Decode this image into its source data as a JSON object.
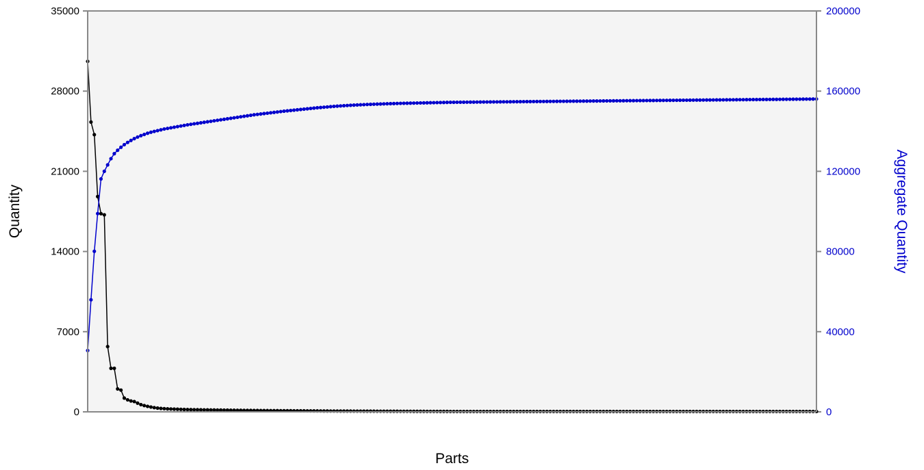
{
  "chart_data": {
    "type": "line",
    "xlabel": "Parts",
    "ylabel": "Quantity",
    "y2label": "Aggregate Quantity",
    "ylim": [
      0,
      35000
    ],
    "y2lim": [
      0,
      200000
    ],
    "yticks": [
      "0",
      "7000",
      "14000",
      "21000",
      "28000",
      "35000"
    ],
    "y2ticks": [
      "0",
      "40000",
      "80000",
      "120000",
      "160000",
      "200000"
    ],
    "grid": false,
    "legend": "none",
    "colors": {
      "quantity": "#000000",
      "aggregate": "#0000cc",
      "plot_bg": "#f4f4f4",
      "frame": "#888888"
    },
    "x": [
      1,
      2,
      3,
      4,
      5,
      6,
      7,
      8,
      9,
      10,
      11,
      12,
      13,
      14,
      15,
      16,
      17,
      18,
      19,
      20,
      21,
      22,
      23,
      24,
      25,
      26,
      27,
      28,
      29,
      30,
      31,
      32,
      33,
      34,
      35,
      36,
      37,
      38,
      39,
      40,
      41,
      42,
      43,
      44,
      45,
      46,
      47,
      48,
      49,
      50,
      51,
      52,
      53,
      54,
      55,
      56,
      57,
      58,
      59,
      60,
      61,
      62,
      63,
      64,
      65,
      66,
      67,
      68,
      69,
      70,
      71,
      72,
      73,
      74,
      75,
      76,
      77,
      78,
      79,
      80,
      81,
      82,
      83,
      84,
      85,
      86,
      87,
      88,
      89,
      90,
      91,
      92,
      93,
      94,
      95,
      96,
      97,
      98,
      99,
      100,
      101,
      102,
      103,
      104,
      105,
      106,
      107,
      108,
      109,
      110,
      111,
      112,
      113,
      114,
      115,
      116,
      117,
      118,
      119,
      120,
      121,
      122,
      123,
      124,
      125,
      126,
      127,
      128,
      129,
      130,
      131,
      132,
      133,
      134,
      135,
      136,
      137,
      138,
      139,
      140,
      141,
      142,
      143,
      144,
      145,
      146,
      147,
      148,
      149,
      150,
      151,
      152,
      153,
      154,
      155,
      156,
      157,
      158,
      159,
      160,
      161,
      162,
      163,
      164,
      165,
      166,
      167,
      168,
      169,
      170,
      171,
      172,
      173,
      174,
      175,
      176,
      177,
      178,
      179,
      180,
      181,
      182,
      183,
      184,
      185,
      186,
      187,
      188,
      189,
      190,
      191,
      192,
      193,
      194,
      195,
      196,
      197,
      198,
      199,
      200,
      201,
      202,
      203,
      204,
      205,
      206,
      207,
      208,
      209,
      210,
      211,
      212,
      213,
      214,
      215,
      216,
      217,
      218,
      219,
      220
    ],
    "series": [
      {
        "axis": "left",
        "values": [
          30600,
          25300,
          24200,
          18800,
          17300,
          17200,
          5700,
          3800,
          3800,
          2000,
          1900,
          1200,
          1050,
          950,
          900,
          760,
          630,
          550,
          480,
          420,
          370,
          330,
          300,
          280,
          260,
          250,
          240,
          230,
          220,
          210,
          200,
          195,
          190,
          185,
          180,
          176,
          172,
          168,
          164,
          160,
          156,
          152,
          148,
          144,
          140,
          137,
          134,
          131,
          128,
          125,
          122,
          119,
          116,
          113,
          110,
          108,
          106,
          104,
          102,
          100,
          98,
          96,
          94,
          92,
          90,
          88,
          86,
          84,
          82,
          80,
          78,
          76,
          74,
          72,
          70,
          69,
          68,
          67,
          66,
          65,
          64,
          63,
          62,
          61,
          60,
          59,
          58,
          57,
          56,
          55,
          54,
          53,
          52,
          51,
          50,
          49,
          48,
          47,
          46,
          45,
          44,
          43,
          42,
          41,
          40,
          39,
          38,
          37,
          36,
          35,
          35,
          35,
          35,
          35,
          35,
          35,
          35,
          35,
          35,
          35,
          35,
          35,
          35,
          35,
          35,
          35,
          35,
          35,
          35,
          35,
          35,
          35,
          35,
          35,
          35,
          35,
          35,
          35,
          35,
          35,
          35,
          35,
          35,
          35,
          35,
          35,
          35,
          35,
          35,
          35,
          35,
          35,
          35,
          35,
          35,
          35,
          35,
          35,
          35,
          35,
          35,
          35,
          35,
          35,
          35,
          35,
          35,
          35,
          35,
          35,
          35,
          35,
          35,
          35,
          35,
          35,
          35,
          35,
          35,
          35,
          35,
          35,
          35,
          35,
          35,
          35,
          35,
          35,
          35,
          35,
          35,
          35,
          35,
          35,
          35,
          35,
          35,
          35,
          35,
          35,
          35,
          35,
          35,
          35,
          35,
          35,
          35,
          35,
          35,
          35,
          35,
          35,
          35,
          35,
          35,
          35,
          35,
          35,
          35,
          35
        ]
      },
      {
        "axis": "right",
        "values": [
          30600,
          55900,
          80100,
          98900,
          116200,
          120000,
          123200,
          126300,
          128800,
          130500,
          132000,
          133300,
          134400,
          135400,
          136300,
          137100,
          137800,
          138400,
          139000,
          139500,
          139900,
          140300,
          140700,
          141100,
          141400,
          141700,
          142000,
          142300,
          142600,
          142900,
          143200,
          143450,
          143700,
          143950,
          144200,
          144450,
          144700,
          144950,
          145200,
          145450,
          145700,
          145950,
          146200,
          146450,
          146700,
          146950,
          147200,
          147450,
          147700,
          147950,
          148200,
          148400,
          148600,
          148800,
          149000,
          149200,
          149400,
          149600,
          149800,
          150000,
          150170,
          150340,
          150510,
          150680,
          150850,
          151020,
          151190,
          151360,
          151530,
          151700,
          151840,
          151980,
          152120,
          152260,
          152400,
          152510,
          152620,
          152730,
          152840,
          152950,
          153030,
          153110,
          153190,
          153270,
          153350,
          153410,
          153470,
          153530,
          153590,
          153650,
          153700,
          153750,
          153800,
          153850,
          153900,
          153935,
          153970,
          154005,
          154040,
          154075,
          154110,
          154145,
          154180,
          154215,
          154250,
          154285,
          154320,
          154355,
          154390,
          154425,
          154440,
          154455,
          154470,
          154485,
          154500,
          154515,
          154530,
          154545,
          154560,
          154575,
          154590,
          154605,
          154620,
          154635,
          154650,
          154665,
          154680,
          154695,
          154710,
          154725,
          154740,
          154755,
          154770,
          154785,
          154800,
          154815,
          154830,
          154845,
          154860,
          154875,
          154890,
          154905,
          154920,
          154935,
          154950,
          154965,
          154980,
          154995,
          155010,
          155025,
          155040,
          155055,
          155070,
          155085,
          155100,
          155115,
          155130,
          155145,
          155160,
          155175,
          155190,
          155205,
          155220,
          155235,
          155250,
          155265,
          155280,
          155295,
          155310,
          155325,
          155340,
          155355,
          155370,
          155385,
          155400,
          155415,
          155430,
          155445,
          155460,
          155475,
          155490,
          155505,
          155520,
          155535,
          155550,
          155565,
          155580,
          155595,
          155610,
          155625,
          155640,
          155655,
          155670,
          155685,
          155700,
          155715,
          155730,
          155745,
          155760,
          155775,
          155790,
          155805,
          155820,
          155835,
          155850,
          155865,
          155880,
          155895,
          155910,
          155925,
          155940,
          155955,
          155970,
          155985,
          156000,
          156015,
          156030,
          156045,
          156060,
          156075
        ]
      }
    ]
  }
}
